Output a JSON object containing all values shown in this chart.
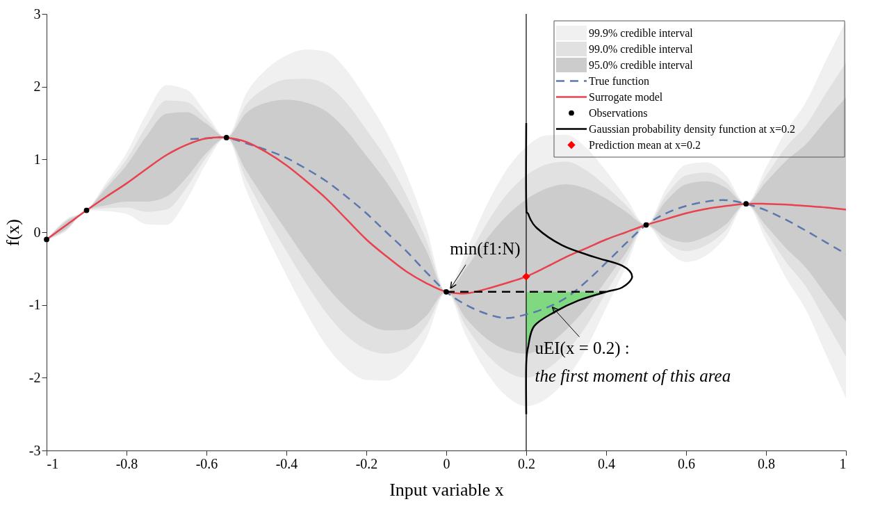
{
  "chart_data": {
    "type": "line",
    "xlabel": "Input variable x",
    "ylabel": "f(x)",
    "xlim": [
      -1,
      1
    ],
    "ylim": [
      -3,
      3
    ],
    "xticks": [
      -1,
      -0.8,
      -0.6,
      -0.4,
      -0.2,
      0,
      0.2,
      0.4,
      0.6,
      0.8,
      1
    ],
    "yticks": [
      -3,
      -2,
      -1,
      0,
      1,
      2,
      3
    ],
    "grid": false,
    "legend": "top right",
    "series": [
      {
        "name": "99.9% credible interval",
        "color": "#f0f0f0",
        "values": [
          null,
          null,
          null,
          null,
          null,
          null,
          null,
          null,
          null,
          null,
          null,
          null,
          null,
          null,
          null,
          null,
          null,
          null,
          null,
          null,
          null,
          null,
          null,
          null,
          null,
          null,
          null,
          null,
          null,
          null,
          null,
          null,
          null,
          null,
          null,
          null,
          null,
          null,
          null,
          null,
          null
        ],
        "x": [
          -1,
          -0.95,
          -0.9,
          -0.85,
          -0.8,
          -0.75,
          -0.7,
          -0.65,
          -0.6,
          -0.55,
          -0.5,
          -0.45,
          -0.4,
          -0.35,
          -0.3,
          -0.25,
          -0.2,
          -0.15,
          -0.1,
          -0.05,
          0,
          0.05,
          0.1,
          0.15,
          0.2,
          0.25,
          0.3,
          0.35,
          0.4,
          0.45,
          0.5,
          0.55,
          0.6,
          0.65,
          0.7,
          0.75,
          0.8,
          0.85,
          0.9,
          0.95,
          1.0
        ],
        "lower": [
          -0.1,
          0.02,
          0.3,
          0.29,
          0.25,
          0.11,
          0.1,
          0.44,
          0.95,
          1.3,
          0.57,
          -0.04,
          -0.59,
          -1.11,
          -1.56,
          -1.87,
          -2.03,
          -2.04,
          -1.88,
          -1.46,
          -0.82,
          -1.43,
          -1.92,
          -2.25,
          -2.39,
          -2.29,
          -2.02,
          -1.6,
          -1.04,
          -0.47,
          0.1,
          -0.24,
          -0.41,
          -0.32,
          -0.06,
          0.39,
          -0.11,
          -0.63,
          -1.07,
          -1.68,
          -2.28
        ],
        "upper": [
          -0.1,
          0.18,
          0.3,
          0.69,
          1.09,
          1.63,
          2.02,
          1.96,
          1.63,
          1.3,
          1.91,
          2.24,
          2.43,
          2.51,
          2.48,
          2.23,
          1.83,
          1.38,
          0.8,
          0.06,
          -0.82,
          -0.25,
          0.36,
          0.85,
          1.17,
          1.33,
          1.34,
          1.16,
          0.84,
          0.47,
          0.1,
          0.6,
          0.93,
          0.96,
          0.78,
          0.39,
          0.89,
          1.39,
          1.79,
          2.36,
          2.9
        ]
      },
      {
        "name": "99.0% credible interval",
        "color": "#e1e1e1",
        "values": [
          null,
          null,
          null,
          null,
          null,
          null,
          null,
          null,
          null,
          null,
          null,
          null,
          null,
          null,
          null,
          null,
          null,
          null,
          null,
          null,
          null,
          null,
          null,
          null,
          null,
          null,
          null,
          null,
          null,
          null,
          null,
          null,
          null,
          null,
          null,
          null,
          null,
          null,
          null,
          null,
          null
        ],
        "x": [
          -1,
          -0.95,
          -0.9,
          -0.85,
          -0.8,
          -0.75,
          -0.7,
          -0.65,
          -0.6,
          -0.55,
          -0.5,
          -0.45,
          -0.4,
          -0.35,
          -0.3,
          -0.25,
          -0.2,
          -0.15,
          -0.1,
          -0.05,
          0,
          0.05,
          0.1,
          0.15,
          0.2,
          0.25,
          0.3,
          0.35,
          0.4,
          0.45,
          0.5,
          0.55,
          0.6,
          0.65,
          0.7,
          0.75,
          0.8,
          0.85,
          0.9,
          0.95,
          1.0
        ],
        "lower": [
          -0.1,
          0.03,
          0.3,
          0.33,
          0.34,
          0.28,
          0.31,
          0.61,
          1.03,
          1.3,
          0.72,
          0.21,
          -0.26,
          -0.71,
          -1.11,
          -1.42,
          -1.61,
          -1.67,
          -1.59,
          -1.29,
          -0.82,
          -1.3,
          -1.67,
          -1.91,
          -2.0,
          -1.89,
          -1.65,
          -1.29,
          -0.83,
          -0.37,
          0.1,
          -0.15,
          -0.26,
          -0.18,
          0.03,
          0.39,
          0.0,
          -0.41,
          -0.75,
          -1.23,
          -1.71
        ],
        "upper": [
          -0.1,
          0.17,
          0.3,
          0.65,
          1.0,
          1.46,
          1.81,
          1.79,
          1.55,
          1.3,
          1.76,
          1.99,
          2.1,
          2.11,
          2.03,
          1.78,
          1.41,
          1.01,
          0.51,
          -0.11,
          -0.82,
          -0.38,
          0.11,
          0.51,
          0.78,
          0.93,
          0.97,
          0.85,
          0.63,
          0.37,
          0.1,
          0.51,
          0.78,
          0.82,
          0.69,
          0.39,
          0.78,
          1.17,
          1.47,
          1.91,
          2.33
        ]
      },
      {
        "name": "95.0% credible interval",
        "color": "#cccccc",
        "values": [
          null,
          null,
          null,
          null,
          null,
          null,
          null,
          null,
          null,
          null,
          null,
          null,
          null,
          null,
          null,
          null,
          null,
          null,
          null,
          null,
          null,
          null,
          null,
          null,
          null,
          null,
          null,
          null,
          null,
          null,
          null,
          null,
          null,
          null,
          null,
          null,
          null,
          null,
          null,
          null,
          null
        ],
        "x": [
          -1,
          -0.95,
          -0.9,
          -0.85,
          -0.8,
          -0.75,
          -0.7,
          -0.65,
          -0.6,
          -0.55,
          -0.5,
          -0.45,
          -0.4,
          -0.35,
          -0.3,
          -0.25,
          -0.2,
          -0.15,
          -0.1,
          -0.05,
          0,
          0.05,
          0.1,
          0.15,
          0.2,
          0.25,
          0.3,
          0.35,
          0.4,
          0.45,
          0.5,
          0.55,
          0.6,
          0.65,
          0.7,
          0.75,
          0.8,
          0.85,
          0.9,
          0.95,
          1.0
        ],
        "lower": [
          -0.1,
          0.05,
          0.3,
          0.37,
          0.42,
          0.42,
          0.49,
          0.75,
          1.09,
          1.3,
          0.84,
          0.42,
          0.02,
          -0.38,
          -0.74,
          -1.04,
          -1.25,
          -1.35,
          -1.34,
          -1.15,
          -0.82,
          -1.19,
          -1.46,
          -1.62,
          -1.67,
          -1.56,
          -1.34,
          -1.04,
          -0.66,
          -0.28,
          0.1,
          -0.07,
          -0.14,
          -0.06,
          0.11,
          0.39,
          0.09,
          -0.22,
          -0.49,
          -0.86,
          -1.23
        ],
        "upper": [
          -0.1,
          0.15,
          0.3,
          0.61,
          0.92,
          1.32,
          1.63,
          1.65,
          1.49,
          1.3,
          1.64,
          1.78,
          1.82,
          1.78,
          1.66,
          1.4,
          1.05,
          0.69,
          0.26,
          -0.25,
          -0.82,
          -0.49,
          -0.1,
          0.22,
          0.45,
          0.6,
          0.66,
          0.6,
          0.46,
          0.28,
          0.1,
          0.43,
          0.66,
          0.7,
          0.61,
          0.39,
          0.69,
          0.98,
          1.21,
          1.54,
          1.85
        ]
      },
      {
        "name": "True function",
        "color": "#5a78ad",
        "line_style": "dashed",
        "x": [
          -0.64,
          -0.6,
          -0.55,
          -0.5,
          -0.45,
          -0.4,
          -0.35,
          -0.3,
          -0.25,
          -0.2,
          -0.15,
          -0.1,
          -0.05,
          0,
          0.05,
          0.1,
          0.15,
          0.2,
          0.25,
          0.3,
          0.35,
          0.4,
          0.45,
          0.5,
          0.55,
          0.6,
          0.65,
          0.7,
          0.75,
          0.8,
          0.85,
          0.9,
          0.95,
          1.0
        ],
        "values": [
          1.28,
          1.29,
          1.3,
          1.22,
          1.13,
          1.02,
          0.87,
          0.7,
          0.49,
          0.26,
          0.0,
          -0.26,
          -0.55,
          -0.82,
          -1.0,
          -1.12,
          -1.18,
          -1.13,
          -1.04,
          -0.9,
          -0.68,
          -0.42,
          -0.15,
          0.1,
          0.26,
          0.36,
          0.42,
          0.44,
          0.39,
          0.3,
          0.17,
          0.02,
          -0.14,
          -0.3
        ]
      },
      {
        "name": "Surrogate model",
        "color": "#e8424f",
        "line_style": "solid",
        "x": [
          -1,
          -0.95,
          -0.9,
          -0.85,
          -0.8,
          -0.75,
          -0.7,
          -0.65,
          -0.6,
          -0.55,
          -0.5,
          -0.45,
          -0.4,
          -0.35,
          -0.3,
          -0.25,
          -0.2,
          -0.15,
          -0.1,
          -0.05,
          0,
          0.05,
          0.1,
          0.15,
          0.2,
          0.25,
          0.3,
          0.35,
          0.4,
          0.45,
          0.5,
          0.55,
          0.6,
          0.65,
          0.7,
          0.75,
          0.8,
          0.85,
          0.9,
          0.95,
          1.0
        ],
        "values": [
          -0.1,
          0.1,
          0.3,
          0.49,
          0.67,
          0.87,
          1.06,
          1.2,
          1.29,
          1.3,
          1.24,
          1.1,
          0.92,
          0.7,
          0.46,
          0.18,
          -0.1,
          -0.33,
          -0.54,
          -0.7,
          -0.82,
          -0.84,
          -0.78,
          -0.7,
          -0.61,
          -0.48,
          -0.34,
          -0.22,
          -0.1,
          0.0,
          0.1,
          0.18,
          0.26,
          0.32,
          0.36,
          0.39,
          0.39,
          0.38,
          0.36,
          0.34,
          0.31
        ]
      },
      {
        "name": "Observations",
        "type": "scatter",
        "color": "#000000",
        "marker": "circle",
        "x": [
          -1,
          -0.9,
          -0.55,
          0,
          0.5,
          0.75
        ],
        "values": [
          -0.1,
          0.3,
          1.3,
          -0.82,
          0.1,
          0.39
        ]
      },
      {
        "name": "Gaussian probability density function at x=0.2",
        "color": "#000000",
        "line_style": "solid",
        "x": [
          0.2,
          0.2,
          0.205,
          0.226,
          0.29,
          0.37,
          0.44,
          0.465,
          0.44,
          0.4,
          0.33,
          0.27,
          0.22,
          0.205,
          0.2,
          0.2
        ],
        "values": [
          1.5,
          0.4,
          0.25,
          0.06,
          -0.18,
          -0.34,
          -0.46,
          -0.61,
          -0.76,
          -0.82,
          -0.94,
          -1.1,
          -1.29,
          -1.57,
          -1.81,
          -2.5
        ]
      },
      {
        "name": "Prediction mean at x=0.2",
        "type": "scatter",
        "color": "#ff0000",
        "marker": "diamond",
        "x": [
          0.2
        ],
        "values": [
          -0.61
        ]
      },
      {
        "color": "#80d880",
        "x": [
          0.2,
          0.22,
          0.27,
          0.33,
          0.4
        ],
        "values": [
          null,
          null,
          null,
          null,
          null
        ],
        "lower": [
          -1.6,
          -1.29,
          -1.1,
          -0.94,
          -0.82
        ],
        "upper": [
          -0.82,
          -0.82,
          -0.82,
          -0.82,
          -0.82
        ]
      },
      {
        "color": "#000000",
        "line_style": "dashed",
        "x": [
          0,
          0.4
        ],
        "values": [
          -0.82,
          -0.82
        ]
      }
    ],
    "ref_lines": [
      {
        "axis": "x",
        "value": 0.2,
        "color": "#000000"
      }
    ],
    "annotations": [
      {
        "text": "min(f1:N)",
        "x": 0,
        "y": -0.82
      },
      {
        "text": "uEI(x = 0.2) :",
        "x": 0.26,
        "y": -1.0
      },
      "the first moment of this area"
    ]
  }
}
